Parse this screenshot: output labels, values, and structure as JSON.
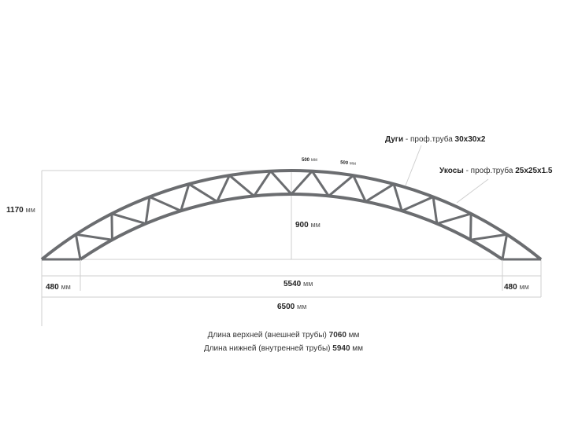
{
  "dimensions": {
    "total_height": "1170",
    "arc_rise": "900",
    "left_offset": "480",
    "inner_span": "5540",
    "right_offset": "480",
    "total_span": "6500",
    "spacing_1": "500",
    "spacing_2": "500",
    "unit": "мм"
  },
  "labels": {
    "arcs_name": "Дуги",
    "arcs_spec": " - проф.труба ",
    "arcs_size": "30x30x2",
    "braces_name": "Укосы",
    "braces_spec": " - проф.труба ",
    "braces_size": "25x25x1.5"
  },
  "footer": {
    "upper_text": "Длина верхней (внешней трубы) ",
    "upper_value": "7060",
    "lower_text": "Длина нижней (внутренней трубы) ",
    "lower_value": "5940",
    "unit": "мм"
  },
  "colors": {
    "truss": "#6b6d70",
    "dim_line": "#c8c8c8"
  }
}
